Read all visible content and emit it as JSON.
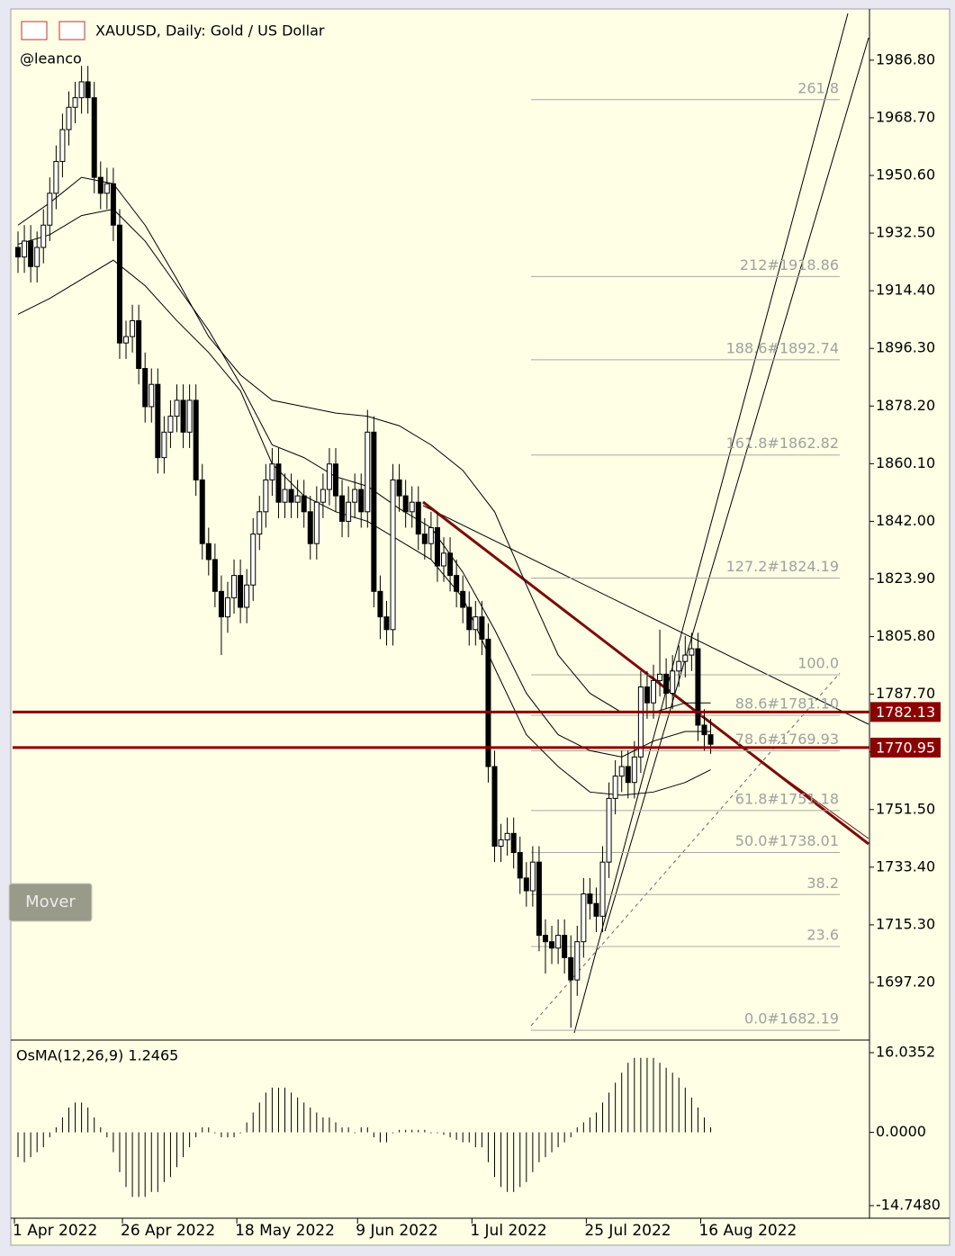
{
  "header": {
    "title": "XAUUSD, Daily:  Gold / US Dollar",
    "author": "@leanco"
  },
  "button": "Mover",
  "chart_data": [
    {
      "type": "candlestick",
      "categories": [
        "1 Apr 2022",
        null,
        null,
        null,
        null,
        null,
        null,
        null,
        null,
        null,
        null,
        null,
        null,
        null,
        null,
        null,
        null,
        "26 Apr 2022",
        null,
        null,
        null,
        null,
        null,
        null,
        null,
        null,
        null,
        null,
        null,
        null,
        null,
        null,
        null,
        null,
        null,
        "18 May 2022",
        null,
        null,
        null,
        null,
        null,
        null,
        null,
        null,
        null,
        null,
        null,
        null,
        null,
        null,
        null,
        null,
        null,
        null,
        "9 Jun 2022",
        null,
        null,
        null,
        null,
        null,
        null,
        null,
        null,
        null,
        null,
        null,
        null,
        null,
        null,
        null,
        null,
        null,
        "1 Jul 2022",
        null,
        null,
        null,
        null,
        null,
        null,
        null,
        null,
        null,
        null,
        null,
        null,
        null,
        null,
        null,
        null,
        null,
        "25 Jul 2022",
        null,
        null,
        null,
        null,
        null,
        null,
        null,
        null,
        null,
        null,
        null,
        null,
        null,
        null,
        null,
        null,
        null,
        "16 Aug 2022",
        null
      ],
      "open": [
        1928,
        1925,
        1930,
        1922,
        1928,
        1935,
        1945,
        1955,
        1965,
        1972,
        1975,
        1980,
        1975,
        1950,
        1945,
        1948,
        1935,
        1898,
        1900,
        1905,
        1890,
        1878,
        1885,
        1862,
        1870,
        1875,
        1880,
        1870,
        1880,
        1855,
        1835,
        1830,
        1820,
        1812,
        1818,
        1825,
        1815,
        1822,
        1838,
        1845,
        1855,
        1860,
        1848,
        1852,
        1848,
        1850,
        1845,
        1835,
        1848,
        1852,
        1860,
        1850,
        1842,
        1848,
        1852,
        1845,
        1870,
        1820,
        1812,
        1808,
        1855,
        1850,
        1845,
        1848,
        1838,
        1835,
        1840,
        1828,
        1832,
        1825,
        1820,
        1815,
        1808,
        1812,
        1805,
        1765,
        1740,
        1742,
        1744,
        1738,
        1730,
        1726,
        1735,
        1712,
        1710,
        1708,
        1712,
        1705,
        1698,
        1710,
        1725,
        1722,
        1718,
        1735,
        1755,
        1762,
        1765,
        1760,
        1768,
        1790,
        1785,
        1792,
        1794,
        1788,
        1795,
        1798,
        1800,
        1802,
        1778,
        1775
      ],
      "high": [
        1933,
        1935,
        1935,
        1933,
        1940,
        1950,
        1960,
        1970,
        1977,
        1980,
        1985,
        1985,
        1980,
        1955,
        1953,
        1953,
        1940,
        1905,
        1910,
        1910,
        1895,
        1890,
        1890,
        1875,
        1880,
        1885,
        1885,
        1885,
        1885,
        1860,
        1840,
        1835,
        1825,
        1823,
        1830,
        1830,
        1827,
        1843,
        1850,
        1860,
        1865,
        1865,
        1857,
        1857,
        1855,
        1855,
        1850,
        1853,
        1857,
        1865,
        1865,
        1855,
        1853,
        1857,
        1857,
        1877,
        1875,
        1825,
        1817,
        1860,
        1860,
        1855,
        1853,
        1853,
        1843,
        1845,
        1845,
        1837,
        1837,
        1830,
        1825,
        1820,
        1817,
        1817,
        1810,
        1770,
        1747,
        1749,
        1749,
        1743,
        1735,
        1740,
        1740,
        1717,
        1715,
        1717,
        1717,
        1712,
        1715,
        1730,
        1730,
        1727,
        1740,
        1760,
        1767,
        1770,
        1770,
        1773,
        1795,
        1795,
        1797,
        1808,
        1799,
        1800,
        1803,
        1806,
        1807,
        1807,
        1783,
        1780
      ],
      "low": [
        1920,
        1920,
        1917,
        1917,
        1923,
        1930,
        1940,
        1950,
        1960,
        1967,
        1970,
        1970,
        1945,
        1940,
        1940,
        1930,
        1893,
        1893,
        1895,
        1885,
        1873,
        1873,
        1857,
        1857,
        1865,
        1870,
        1865,
        1865,
        1850,
        1830,
        1825,
        1815,
        1800,
        1807,
        1813,
        1810,
        1810,
        1817,
        1833,
        1840,
        1850,
        1843,
        1843,
        1843,
        1843,
        1840,
        1830,
        1830,
        1843,
        1847,
        1845,
        1837,
        1837,
        1843,
        1840,
        1840,
        1815,
        1805,
        1803,
        1803,
        1845,
        1840,
        1840,
        1833,
        1830,
        1830,
        1823,
        1823,
        1820,
        1815,
        1810,
        1803,
        1803,
        1800,
        1760,
        1735,
        1735,
        1737,
        1733,
        1725,
        1721,
        1721,
        1707,
        1700,
        1703,
        1703,
        1700,
        1683,
        1693,
        1705,
        1717,
        1713,
        1713,
        1730,
        1750,
        1757,
        1755,
        1755,
        1763,
        1780,
        1780,
        1787,
        1783,
        1783,
        1790,
        1793,
        1795,
        1773,
        1770,
        1769
      ],
      "close": [
        1925,
        1930,
        1922,
        1928,
        1935,
        1945,
        1955,
        1965,
        1972,
        1975,
        1980,
        1975,
        1950,
        1945,
        1948,
        1935,
        1898,
        1900,
        1905,
        1890,
        1878,
        1885,
        1862,
        1870,
        1875,
        1880,
        1870,
        1880,
        1855,
        1835,
        1830,
        1820,
        1812,
        1818,
        1825,
        1815,
        1822,
        1838,
        1845,
        1855,
        1860,
        1848,
        1852,
        1848,
        1850,
        1845,
        1835,
        1848,
        1852,
        1860,
        1850,
        1842,
        1848,
        1852,
        1845,
        1870,
        1820,
        1812,
        1808,
        1855,
        1850,
        1845,
        1848,
        1838,
        1835,
        1840,
        1828,
        1832,
        1825,
        1820,
        1815,
        1808,
        1812,
        1805,
        1765,
        1740,
        1742,
        1744,
        1738,
        1730,
        1726,
        1735,
        1712,
        1710,
        1708,
        1712,
        1705,
        1698,
        1710,
        1725,
        1722,
        1718,
        1735,
        1755,
        1762,
        1765,
        1760,
        1768,
        1790,
        1785,
        1792,
        1794,
        1788,
        1795,
        1798,
        1800,
        1802,
        1778,
        1775,
        1772
      ],
      "ma_lines": [
        [
          1935,
          1942,
          1950,
          1948,
          1935,
          1918,
          1900,
          1888,
          1880,
          1878,
          1876,
          1875,
          1872,
          1866,
          1858,
          1845,
          1822,
          1800,
          1788,
          1782,
          1782,
          1785,
          1785
        ],
        [
          1929,
          1932,
          1938,
          1940,
          1930,
          1916,
          1902,
          1885,
          1866,
          1862,
          1856,
          1853,
          1846,
          1840,
          1826,
          1808,
          1788,
          1775,
          1770,
          1768,
          1773,
          1776,
          1776
        ],
        [
          1907,
          1912,
          1918,
          1924,
          1916,
          1905,
          1895,
          1883,
          1860,
          1850,
          1845,
          1842,
          1836,
          1830,
          1818,
          1796,
          1775,
          1765,
          1757,
          1756,
          1757,
          1760,
          1764
        ]
      ],
      "fib_levels": [
        {
          "value": 1974.4,
          "label": "261.8"
        },
        {
          "value": 1918.86,
          "label": "212#1918.86"
        },
        {
          "value": 1892.74,
          "label": "188.6#1892.74"
        },
        {
          "value": 1862.82,
          "label": "161.8#1862.82"
        },
        {
          "value": 1824.19,
          "label": "127.2#1824.19"
        },
        {
          "value": 1793.8,
          "label": "100.0"
        },
        {
          "value": 1781.1,
          "label": "88.6#1781.10"
        },
        {
          "value": 1769.93,
          "label": "78.6#1769.93"
        },
        {
          "value": 1751.18,
          "label": "61.8#1751.18"
        },
        {
          "value": 1738.01,
          "label": "50.0#1738.01"
        },
        {
          "value": 1724.8,
          "label": "38.2"
        },
        {
          "value": 1708.5,
          "label": "23.6"
        },
        {
          "value": 1682.19,
          "label": "0.0#1682.19"
        }
      ],
      "price_lines": [
        1782.13,
        1770.95
      ],
      "ylim": [
        1679.4,
        2002.3
      ],
      "yticks": [
        {
          "value": 1986.8,
          "label": "1986.80"
        },
        {
          "value": 1968.7,
          "label": "1968.70"
        },
        {
          "value": 1950.6,
          "label": "1950.60"
        },
        {
          "value": 1932.5,
          "label": "1932.50"
        },
        {
          "value": 1914.4,
          "label": "1914.40"
        },
        {
          "value": 1896.3,
          "label": "1896.30"
        },
        {
          "value": 1878.2,
          "label": "1878.20"
        },
        {
          "value": 1860.1,
          "label": "1860.10"
        },
        {
          "value": 1842,
          "label": "1842.00"
        },
        {
          "value": 1823.9,
          "label": "1823.90"
        },
        {
          "value": 1805.8,
          "label": "1805.80"
        },
        {
          "value": 1787.7,
          "label": "1787.70"
        },
        {
          "value": 1769.6,
          "label": "1769.60"
        },
        {
          "value": 1751.5,
          "label": "1751.50"
        },
        {
          "value": 1733.4,
          "label": "1733.40"
        },
        {
          "value": 1715.3,
          "label": "1715.30"
        },
        {
          "value": 1697.2,
          "label": "1697.20"
        }
      ],
      "up_color": "#ffffff",
      "down_color": "#000000",
      "price_line_color": "#8b0000"
    },
    {
      "type": "bar",
      "title": "OsMA(12,26,9) 1.2465",
      "values": [
        -5,
        -6,
        -5,
        -4,
        -3,
        -1,
        1,
        3,
        5,
        6,
        6,
        5,
        3,
        1,
        -1,
        -4,
        -8,
        -11,
        -13,
        -13,
        -13,
        -12,
        -12,
        -10,
        -9,
        -7,
        -5,
        -3,
        -1,
        1,
        1,
        0,
        -1,
        -1,
        -1,
        0,
        2,
        4,
        6,
        8,
        9,
        9,
        9,
        8,
        7,
        6,
        5,
        4,
        3,
        3,
        2,
        1,
        1,
        0,
        1,
        1,
        -1,
        -2,
        -2,
        0,
        0.5,
        0.5,
        0.5,
        0.5,
        0.5,
        0,
        0,
        -0.5,
        -1,
        -1.5,
        -2,
        -2,
        -3,
        -3,
        -6,
        -9,
        -11,
        -12,
        -12,
        -11,
        -10,
        -8,
        -6,
        -5,
        -4,
        -3,
        -2,
        -1,
        1,
        2,
        3,
        4,
        6,
        8,
        10,
        12,
        14,
        15,
        15,
        15,
        15,
        14,
        13,
        12,
        11,
        9,
        7,
        5,
        3,
        1
      ],
      "ylim": [
        -16.92,
        18.21
      ],
      "yticks": [
        16.0352,
        {
          "value": 0,
          "label": "0.0000"
        },
        {
          "value": -14.748,
          "label": "-14.7480"
        }
      ],
      "color": "#000000"
    }
  ]
}
